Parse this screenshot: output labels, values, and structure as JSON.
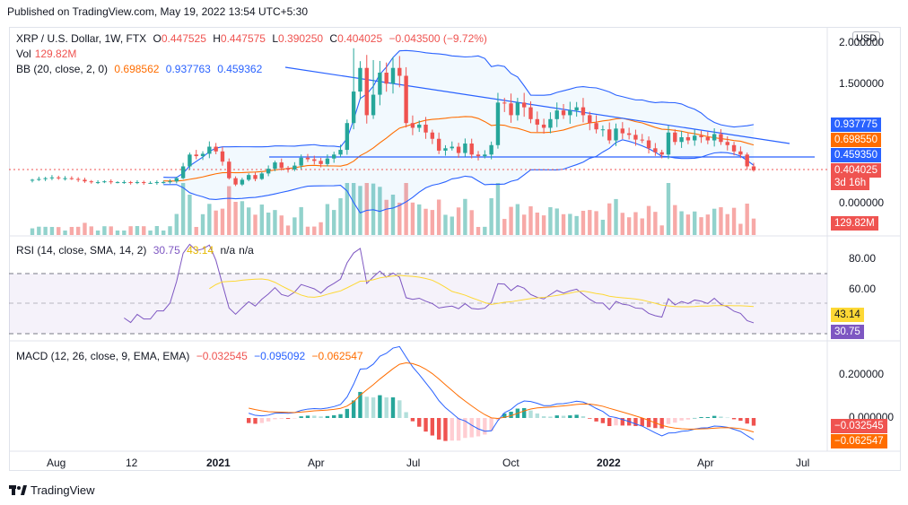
{
  "published": "Published on TradingView.com, May 19, 2022 13:54 UTC+5:30",
  "brand": "TradingView",
  "currency_button": "USD",
  "price_legend": {
    "symbol": "XRP / U.S. Dollar, 1W, FTX",
    "o_label": "O",
    "o": "0.447525",
    "h_label": "H",
    "h": "0.447575",
    "l_label": "L",
    "l": "0.390250",
    "c_label": "C",
    "c": "0.404025",
    "chg": "−0.043500 (−9.72%)"
  },
  "vol_legend": {
    "label": "Vol",
    "value": "129.82M"
  },
  "bb_legend": {
    "label": "BB (20, close, 2, 0)",
    "basis": "0.698562",
    "upper": "0.937763",
    "lower": "0.459362"
  },
  "rsi_legend": {
    "label": "RSI (14, close, SMA, 14, 2)",
    "rsi": "30.75",
    "sma": "43.14",
    "na1": "n/a",
    "na2": "n/a"
  },
  "macd_legend": {
    "label": "MACD (12, 26, close, 9, EMA, EMA)",
    "hist": "−0.032545",
    "macd": "−0.095092",
    "signal": "−0.062547"
  },
  "price_axis": [
    "2.000000",
    "1.500000",
    "0.000000"
  ],
  "rsi_axis": [
    "80.00",
    "60.00"
  ],
  "macd_axis": [
    "0.200000",
    "0.000000"
  ],
  "tags": {
    "bb_upper": "0.937775",
    "bb_basis": "0.698550",
    "bb_lower": "0.459350",
    "last_price": "0.404025",
    "countdown": "3d 16h",
    "volume": "129.82M",
    "rsi_sma": "43.14",
    "rsi": "30.75",
    "macd_hist": "−0.032545",
    "macd_signal": "−0.062547"
  },
  "x_labels": [
    "Aug",
    "12",
    "2021",
    "Apr",
    "Jul",
    "Oct",
    "2022",
    "Apr",
    "Jul"
  ],
  "colors": {
    "up": "#26a69a",
    "down": "#ef5350",
    "bb_band": "#2962ff",
    "bb_basis": "#ff6d00",
    "rsi": "#7e57c2",
    "rsi_sma": "#fdd835",
    "macd": "#2962ff",
    "signal": "#ff6d00",
    "trend": "#2962ff"
  },
  "chart_data": {
    "type": "candlestick",
    "symbol": "XRP / U.S. Dollar",
    "interval": "1W",
    "exchange": "FTX",
    "x_axis_labels": [
      "Aug",
      "12",
      "2021",
      "Apr",
      "Jul",
      "Oct",
      "2022",
      "Apr",
      "Jul"
    ],
    "price_ylim": [
      0.0,
      2.05
    ],
    "closes": [
      0.28,
      0.29,
      0.3,
      0.31,
      0.3,
      0.3,
      0.29,
      0.28,
      0.26,
      0.25,
      0.25,
      0.26,
      0.25,
      0.25,
      0.25,
      0.24,
      0.25,
      0.24,
      0.24,
      0.25,
      0.25,
      0.26,
      0.3,
      0.45,
      0.6,
      0.58,
      0.61,
      0.7,
      0.64,
      0.51,
      0.3,
      0.22,
      0.28,
      0.34,
      0.29,
      0.36,
      0.42,
      0.5,
      0.43,
      0.41,
      0.46,
      0.56,
      0.54,
      0.52,
      0.48,
      0.55,
      0.6,
      0.66,
      1.0,
      1.4,
      1.7,
      1.1,
      1.36,
      1.64,
      1.5,
      1.7,
      1.6,
      1.0,
      0.94,
      0.98,
      0.88,
      0.8,
      0.65,
      0.68,
      0.7,
      0.62,
      0.74,
      0.6,
      0.58,
      0.6,
      0.72,
      1.26,
      1.25,
      1.1,
      1.26,
      1.2,
      1.05,
      0.98,
      0.94,
      1.05,
      1.16,
      1.1,
      1.16,
      1.2,
      1.1,
      1.0,
      0.92,
      0.92,
      0.78,
      0.93,
      0.87,
      0.85,
      0.79,
      0.78,
      0.68,
      0.63,
      0.6,
      0.88,
      0.76,
      0.82,
      0.78,
      0.84,
      0.82,
      0.78,
      0.86,
      0.76,
      0.72,
      0.64,
      0.6,
      0.45,
      0.4
    ],
    "volume_last": "129.82M",
    "bollinger": {
      "length": 20,
      "basis": 0.698562,
      "upper": 0.937763,
      "lower": 0.459362
    },
    "rsi": {
      "length": 14,
      "value": 30.75,
      "sma": 43.14,
      "ylim": [
        20,
        90
      ],
      "levels": [
        70,
        50,
        30
      ]
    },
    "macd": {
      "fast": 12,
      "slow": 26,
      "signal_len": 9,
      "histogram": -0.032545,
      "macd": -0.095092,
      "signal": -0.062547
    }
  }
}
